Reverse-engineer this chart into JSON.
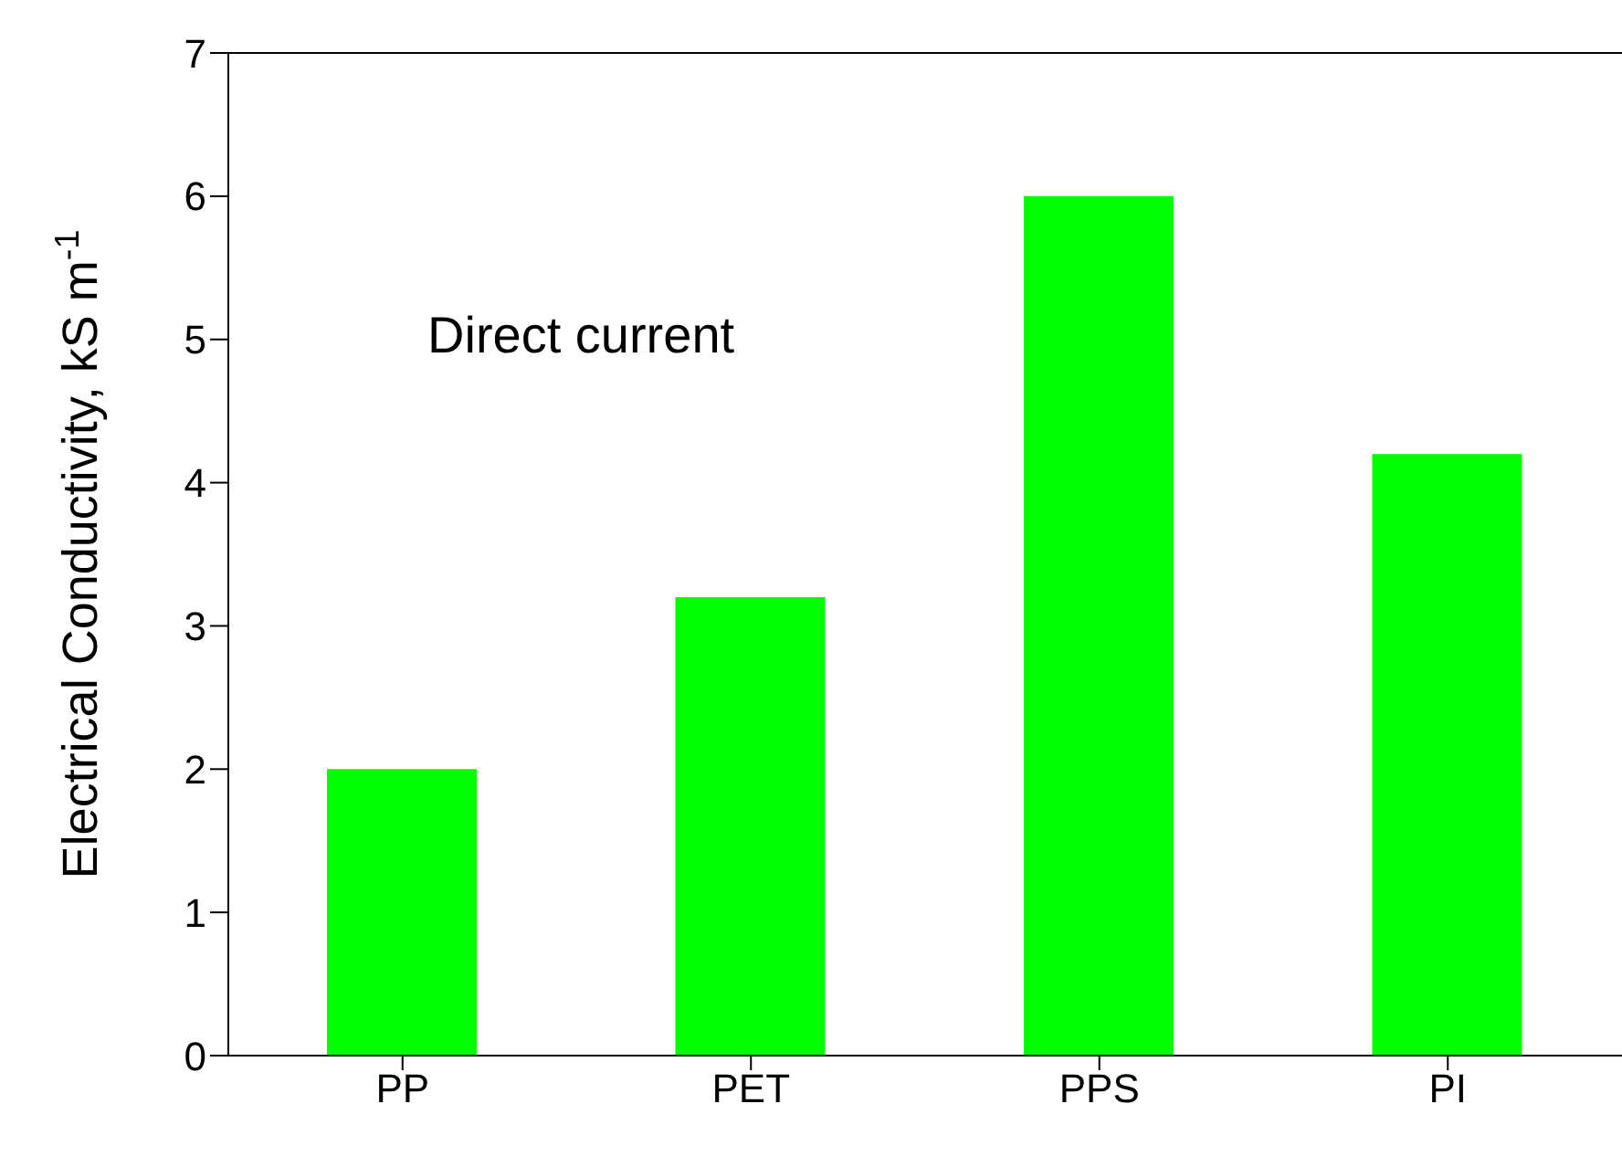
{
  "chart_data": {
    "type": "bar",
    "ylabel": "Electrical Conductivity, kS m$^{-1}$",
    "categories": [
      "PP",
      "PET",
      "PPS",
      "PI"
    ],
    "values": [
      2.0,
      3.2,
      6.0,
      4.2
    ],
    "color": "#00ff00",
    "ylim": [
      0,
      7
    ],
    "yticks": [
      0,
      1,
      2,
      3,
      4,
      5,
      6,
      7
    ],
    "grid": false,
    "annotations": [
      "Direct current"
    ]
  }
}
